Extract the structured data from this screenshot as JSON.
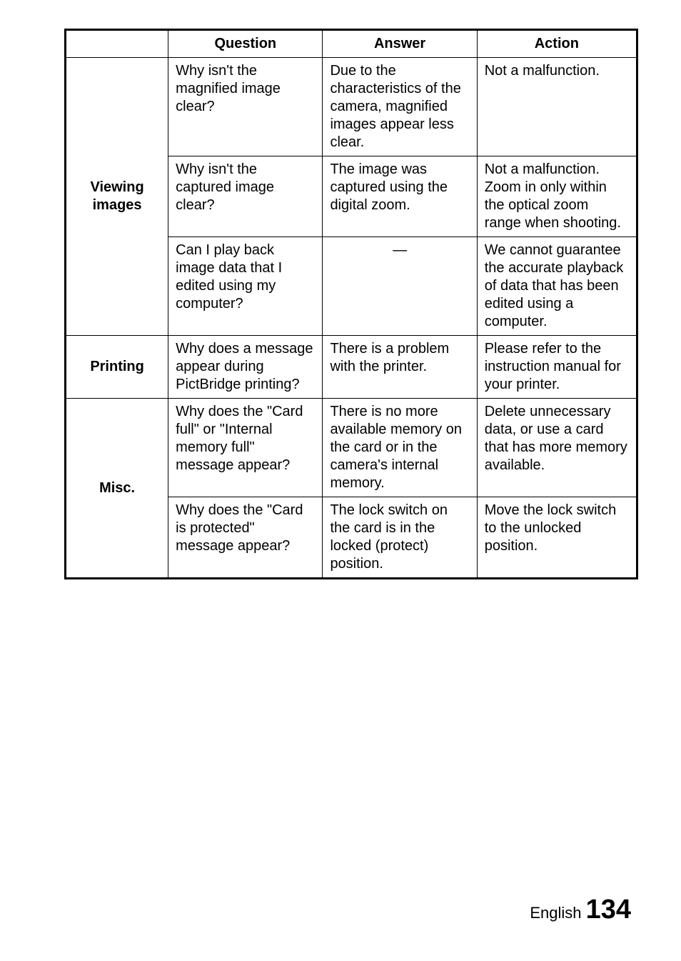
{
  "headers": {
    "question": "Question",
    "answer": "Answer",
    "action": "Action"
  },
  "categories": {
    "viewing": "Viewing images",
    "printing": "Printing",
    "misc": "Misc."
  },
  "rows": {
    "r1": {
      "q": "Why isn't the magnified image clear?",
      "a": "Due to the characteristics of the camera, magnified images appear less clear.",
      "act": "Not a malfunction."
    },
    "r2": {
      "q": "Why isn't the captured image clear?",
      "a": "The image was captured using the digital zoom.",
      "act": "Not a malfunction. Zoom in only within the optical zoom range when shooting."
    },
    "r3": {
      "q": "Can I play back image data that I edited using my computer?",
      "a": "—",
      "act": "We cannot guarantee the accurate playback of data that has been edited using a computer."
    },
    "r4": {
      "q": "Why does a message appear during PictBridge printing?",
      "a": "There is a problem with the printer.",
      "act": "Please refer to the instruction manual for your printer."
    },
    "r5": {
      "q": "Why does the \"Card full\" or \"Internal memory full\" message appear?",
      "a": "There is no more available memory on the card or in the camera's internal memory.",
      "act": "Delete unnecessary data, or use a card that has more memory available."
    },
    "r6": {
      "q": "Why does the \"Card is protected\" message appear?",
      "a": "The lock switch on the card is in the locked (protect) position.",
      "act": "Move the lock switch to the unlocked position."
    }
  },
  "footer": {
    "lang": "English",
    "page": "134"
  }
}
